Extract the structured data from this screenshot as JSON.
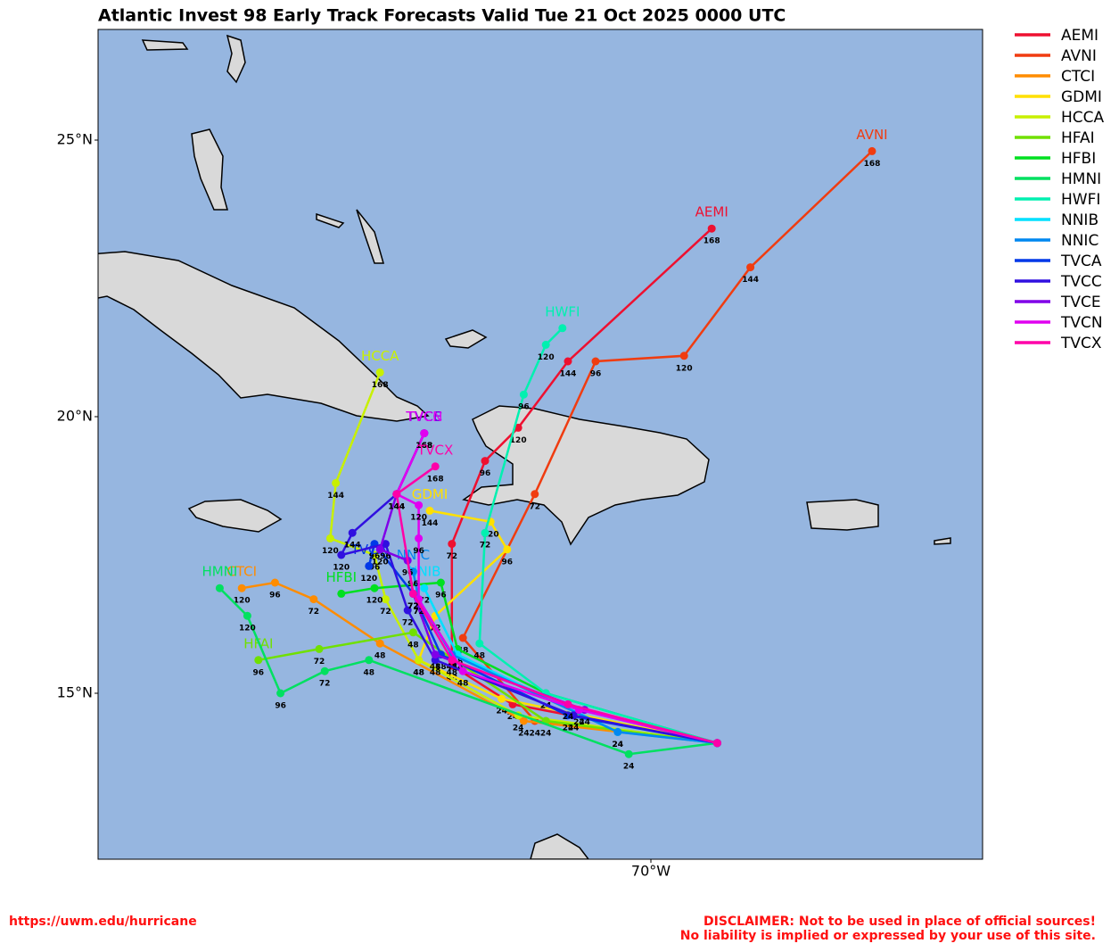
{
  "chart_data": {
    "type": "track",
    "title": "Atlantic Invest 98 Early Track Forecasts Valid Tue 21 Oct 2025 0000 UTC",
    "xlim": [
      -80,
      -64
    ],
    "ylim": [
      12,
      27
    ],
    "xticks": [
      {
        "value": -70,
        "label": "70°W"
      }
    ],
    "yticks": [
      {
        "value": 15,
        "label": "15°N"
      },
      {
        "value": 20,
        "label": "20°N"
      },
      {
        "value": 25,
        "label": "25°N"
      }
    ],
    "legend": "outside-right",
    "series": [
      {
        "name": "AEMI",
        "color": "#ee1030",
        "lon": [
          -68.8,
          -72.5,
          -73.6,
          -73.6,
          -73.0,
          -72.4,
          -71.5,
          -68.9
        ],
        "lat": [
          14.1,
          14.8,
          15.5,
          17.7,
          19.2,
          19.8,
          21.0,
          23.4
        ],
        "hours": [
          null,
          24,
          48,
          72,
          96,
          120,
          144,
          168
        ]
      },
      {
        "name": "AVNI",
        "color": "#f03c10",
        "lon": [
          -68.8,
          -72.1,
          -73.4,
          -72.1,
          -71.0,
          -69.4,
          -68.2,
          -66.0
        ],
        "lat": [
          14.1,
          14.5,
          16.0,
          18.6,
          21.0,
          21.1,
          22.7,
          24.8
        ],
        "hours": [
          null,
          24,
          48,
          72,
          96,
          120,
          144,
          168
        ]
      },
      {
        "name": "CTCI",
        "color": "#ff8c00",
        "lon": [
          -68.8,
          -72.3,
          -74.9,
          -76.1,
          -76.8,
          -77.4
        ],
        "lat": [
          14.1,
          14.5,
          15.9,
          16.7,
          17.0,
          16.9
        ],
        "hours": [
          null,
          24,
          48,
          72,
          96,
          120
        ]
      },
      {
        "name": "GDMI",
        "color": "#ffe000",
        "lon": [
          -68.8,
          -72.7,
          -74.2,
          -73.9,
          -72.6,
          -72.9,
          -74.0
        ],
        "lat": [
          14.1,
          14.9,
          15.6,
          16.4,
          17.6,
          18.1,
          18.3
        ],
        "hours": [
          null,
          24,
          48,
          72,
          96,
          120,
          144
        ]
      },
      {
        "name": "HCCA",
        "color": "#c8f000",
        "lon": [
          -68.8,
          -72.4,
          -74.2,
          -74.8,
          -75.0,
          -75.8,
          -75.7,
          -74.9
        ],
        "lat": [
          14.1,
          14.6,
          15.6,
          16.7,
          17.5,
          17.8,
          18.8,
          20.8
        ],
        "hours": [
          null,
          24,
          48,
          72,
          96,
          120,
          144,
          168
        ]
      },
      {
        "name": "HFAI",
        "color": "#70e000",
        "lon": [
          -68.8,
          -71.9,
          -74.3,
          -76.0,
          -77.1
        ],
        "lat": [
          14.1,
          14.5,
          16.1,
          15.8,
          15.6
        ],
        "hours": [
          null,
          24,
          48,
          72,
          96
        ]
      },
      {
        "name": "HFBI",
        "color": "#00e020",
        "lon": [
          -68.8,
          -71.9,
          -73.5,
          -73.8,
          -75.0,
          -75.6
        ],
        "lat": [
          14.1,
          15.0,
          15.8,
          17.0,
          16.9,
          16.8
        ],
        "hours": [
          null,
          24,
          48,
          96,
          120,
          null
        ]
      },
      {
        "name": "HMNI",
        "color": "#00e060",
        "lon": [
          -68.8,
          -70.4,
          -75.1,
          -75.9,
          -76.7,
          -77.3,
          -77.8
        ],
        "lat": [
          14.1,
          13.9,
          15.6,
          15.4,
          15.0,
          16.4,
          16.9
        ],
        "hours": [
          null,
          24,
          48,
          72,
          96,
          120,
          null
        ]
      },
      {
        "name": "HWFI",
        "color": "#00f0b0",
        "lon": [
          -68.8,
          -71.9,
          -73.1,
          -73.0,
          -72.3,
          -71.9,
          -71.6
        ],
        "lat": [
          14.1,
          15.0,
          15.9,
          17.9,
          20.4,
          21.3,
          21.6
        ],
        "hours": [
          null,
          24,
          48,
          72,
          96,
          120,
          null
        ]
      },
      {
        "name": "NNIB",
        "color": "#00e0ff",
        "lon": [
          -68.8,
          -70.6,
          -73.5,
          -74.1
        ],
        "lat": [
          14.1,
          14.3,
          15.7,
          16.9
        ],
        "hours": [
          null,
          24,
          48,
          72
        ]
      },
      {
        "name": "NNIC",
        "color": "#0088f0",
        "lon": [
          -68.8,
          -70.6,
          -73.6,
          -74.2,
          -74.3
        ],
        "lat": [
          14.1,
          14.3,
          15.7,
          16.7,
          17.2
        ],
        "hours": [
          null,
          24,
          48,
          72,
          96
        ]
      },
      {
        "name": "TVCA",
        "color": "#0038e8",
        "lon": [
          -68.8,
          -71.5,
          -73.8,
          -74.3,
          -75.0,
          -75.1
        ],
        "lat": [
          14.1,
          14.6,
          15.7,
          16.8,
          17.7,
          17.3
        ],
        "hours": [
          null,
          24,
          48,
          72,
          96,
          120
        ]
      },
      {
        "name": "TVCC",
        "color": "#3010e0",
        "lon": [
          -68.8,
          -71.4,
          -73.9,
          -74.4,
          -74.8,
          -75.6,
          -75.4,
          -74.6,
          -74.1
        ],
        "lat": [
          14.1,
          14.6,
          15.6,
          16.5,
          17.7,
          17.5,
          17.9,
          18.6,
          19.7
        ],
        "hours": [
          null,
          24,
          48,
          72,
          96,
          120,
          144,
          null,
          168
        ]
      },
      {
        "name": "TVCE",
        "color": "#8000e8",
        "lon": [
          -68.8,
          -71.2,
          -73.9,
          -74.3,
          -74.4,
          -74.9,
          -74.6,
          -74.1
        ],
        "lat": [
          14.1,
          14.7,
          15.7,
          16.8,
          17.4,
          17.6,
          18.6,
          19.7
        ],
        "hours": [
          null,
          24,
          48,
          72,
          96,
          120,
          144,
          168
        ]
      },
      {
        "name": "TVCN",
        "color": "#e000f0",
        "lon": [
          -68.8,
          -71.3,
          -73.4,
          -74.2,
          -74.2,
          -74.2,
          -74.6,
          -74.1
        ],
        "lat": [
          14.1,
          14.7,
          15.4,
          16.7,
          17.8,
          18.4,
          18.6,
          19.7
        ],
        "hours": [
          null,
          24,
          48,
          72,
          96,
          120,
          144,
          168
        ]
      },
      {
        "name": "TVCX",
        "color": "#ff00a8",
        "lon": [
          -68.8,
          -71.5,
          -73.6,
          -74.3,
          -74.6,
          -73.9
        ],
        "lat": [
          14.1,
          14.8,
          15.6,
          16.8,
          18.6,
          19.1
        ],
        "hours": [
          null,
          24,
          48,
          72,
          144,
          168
        ]
      }
    ]
  },
  "footer": {
    "url": "https://uwm.edu/hurricane",
    "disclaimer": [
      "DISCLAIMER: Not to be used in place of official sources!",
      "No liability is implied or expressed by your use of this site."
    ]
  }
}
